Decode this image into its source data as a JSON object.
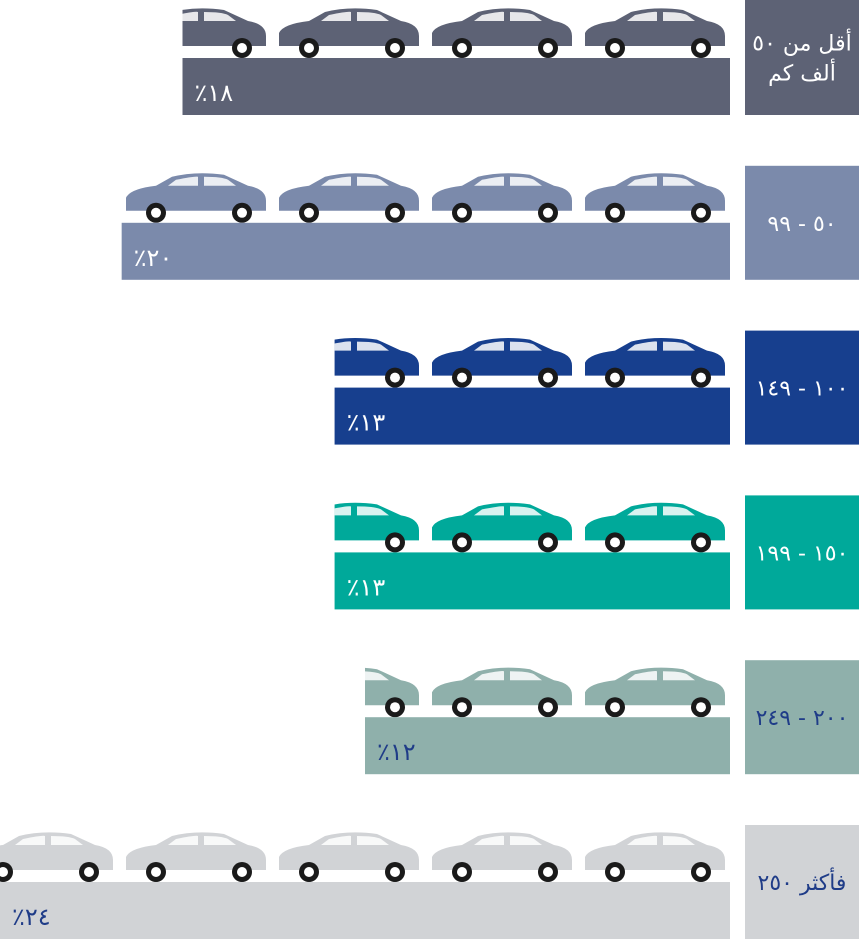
{
  "chart_data": {
    "type": "bar",
    "orientation": "horizontal",
    "categories": [
      "أقل من ٥٠ ألف كم",
      "٥٠ - ٩٩",
      "١٠٠ - ١٤٩",
      "١٥٠ - ١٩٩",
      "٢٠٠ - ٢٤٩",
      "فأكثر ٢٥٠"
    ],
    "values": [
      18,
      20,
      13,
      13,
      12,
      24
    ],
    "value_labels": [
      "١٨٪",
      "٢٠٪",
      "١٣٪",
      "١٣٪",
      "١٢٪",
      "٢٤٪"
    ],
    "colors": [
      "#5d6275",
      "#7b8aab",
      "#173f8e",
      "#00a99a",
      "#8fb0ab",
      "#d1d3d6"
    ],
    "label_colors": [
      "#ffffff",
      "#ffffff",
      "#ffffff",
      "#ffffff",
      "#1f3c88",
      "#1f3c88"
    ]
  }
}
